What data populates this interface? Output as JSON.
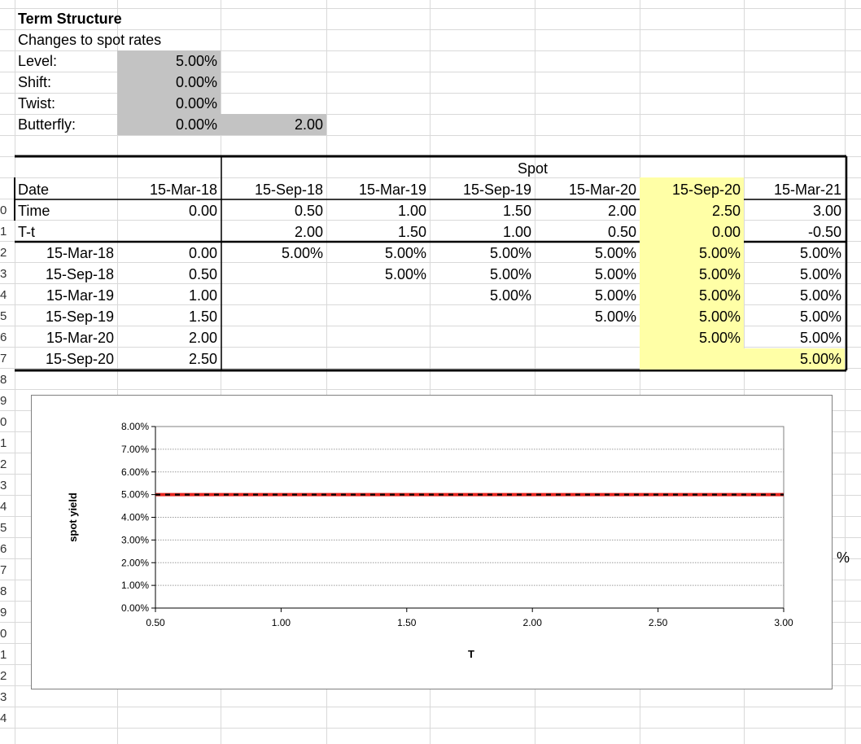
{
  "header": {
    "title": "Term Structure",
    "subtitle": "Changes to spot rates",
    "inputs": [
      {
        "label": "Level:",
        "value": "5.00%"
      },
      {
        "label": "Shift:",
        "value": "0.00%"
      },
      {
        "label": "Twist:",
        "value": "0.00%"
      },
      {
        "label": "Butterfly:",
        "value": "0.00%",
        "extra": "2.00"
      }
    ]
  },
  "table": {
    "group_header": "Spot",
    "row_labels": [
      "Date",
      "Time",
      "T-t"
    ],
    "first_col_header": "15-Mar-18",
    "first_col_time": "0.00",
    "columns": [
      {
        "date": "15-Sep-18",
        "time": "0.50",
        "tt": "2.00"
      },
      {
        "date": "15-Mar-19",
        "time": "1.00",
        "tt": "1.50"
      },
      {
        "date": "15-Sep-19",
        "time": "1.50",
        "tt": "1.00"
      },
      {
        "date": "15-Mar-20",
        "time": "2.00",
        "tt": "0.50"
      },
      {
        "date": "15-Sep-20",
        "time": "2.50",
        "tt": "0.00"
      },
      {
        "date": "15-Mar-21",
        "time": "3.00",
        "tt": "-0.50"
      }
    ],
    "rows": [
      {
        "date": "15-Mar-18",
        "time": "0.00",
        "cells": [
          "5.00%",
          "5.00%",
          "5.00%",
          "5.00%",
          "5.00%",
          "5.00%"
        ]
      },
      {
        "date": "15-Sep-18",
        "time": "0.50",
        "cells": [
          "",
          "5.00%",
          "5.00%",
          "5.00%",
          "5.00%",
          "5.00%"
        ]
      },
      {
        "date": "15-Mar-19",
        "time": "1.00",
        "cells": [
          "",
          "",
          "5.00%",
          "5.00%",
          "5.00%",
          "5.00%"
        ]
      },
      {
        "date": "15-Sep-19",
        "time": "1.50",
        "cells": [
          "",
          "",
          "",
          "5.00%",
          "5.00%",
          "5.00%"
        ]
      },
      {
        "date": "15-Mar-20",
        "time": "2.00",
        "cells": [
          "",
          "",
          "",
          "",
          "5.00%",
          "5.00%"
        ]
      },
      {
        "date": "15-Sep-20",
        "time": "2.50",
        "cells": [
          "",
          "",
          "",
          "",
          "",
          "5.00%"
        ]
      }
    ]
  },
  "row_numbers": [
    "0",
    "1",
    "2",
    "3",
    "4",
    "5",
    "6",
    "7",
    "8",
    "9",
    "0",
    "1",
    "2",
    "3",
    "4",
    "5",
    "6",
    "7",
    "8",
    "9",
    "0",
    "1",
    "2",
    "3",
    "4"
  ],
  "stray_text": "%",
  "colors": {
    "highlight": "#ffffa6",
    "input_fill": "#c3c3c3",
    "series_red": "#e8251f",
    "series_black": "#000000"
  },
  "chart_data": {
    "type": "line",
    "xlabel": "T",
    "ylabel": "spot yield",
    "xlim": [
      0.5,
      3.0
    ],
    "ylim": [
      0.0,
      8.0
    ],
    "x_ticks": [
      "0.50",
      "1.00",
      "1.50",
      "2.00",
      "2.50",
      "3.00"
    ],
    "y_ticks": [
      "0.00%",
      "1.00%",
      "2.00%",
      "3.00%",
      "4.00%",
      "5.00%",
      "6.00%",
      "7.00%",
      "8.00%"
    ],
    "grid": true,
    "series": [
      {
        "style": "red solid",
        "x": [
          0.5,
          1.0,
          1.5,
          2.0,
          2.5,
          3.0
        ],
        "y": [
          5.0,
          5.0,
          5.0,
          5.0,
          5.0,
          5.0
        ]
      },
      {
        "style": "black dashed",
        "x": [
          0.5,
          1.0,
          1.5,
          2.0,
          2.5,
          3.0
        ],
        "y": [
          5.0,
          5.0,
          5.0,
          5.0,
          5.0,
          5.0
        ]
      }
    ]
  }
}
